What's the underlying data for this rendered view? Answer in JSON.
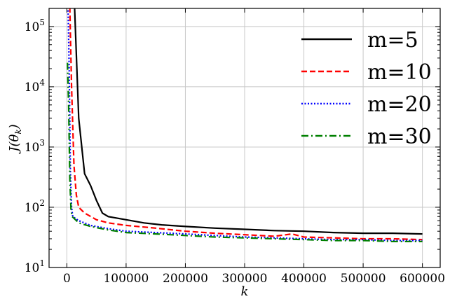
{
  "chart_data": {
    "type": "line",
    "xlabel": "k",
    "ylabel": "J(θ_k)",
    "yscale": "log",
    "xlim": [
      -30000,
      630000
    ],
    "ylim": [
      10,
      200000
    ],
    "xticks": [
      0,
      100000,
      200000,
      300000,
      400000,
      500000,
      600000
    ],
    "xtick_labels": [
      "0",
      "100000",
      "200000",
      "300000",
      "400000",
      "500000",
      "600000"
    ],
    "yticks": [
      10,
      100,
      1000,
      10000,
      100000
    ],
    "ytick_labels": [
      {
        "base": "10",
        "exp": "1"
      },
      {
        "base": "10",
        "exp": "2"
      },
      {
        "base": "10",
        "exp": "3"
      },
      {
        "base": "10",
        "exp": "4"
      },
      {
        "base": "10",
        "exp": "5"
      }
    ],
    "grid": true,
    "legend_position": "top-right",
    "series": [
      {
        "name": "m=5",
        "color": "#000000",
        "style": "solid",
        "x": [
          13000,
          20000,
          30000,
          40000,
          50000,
          60000,
          70000,
          100000,
          130000,
          160000,
          200000,
          250000,
          300000,
          350000,
          400000,
          450000,
          500000,
          550000,
          600000
        ],
        "y": [
          300000,
          3000,
          360,
          230,
          130,
          80,
          70,
          62,
          55,
          51,
          48,
          45,
          43,
          41,
          40,
          38,
          37,
          37,
          36
        ]
      },
      {
        "name": "m=10",
        "color": "#ff0000",
        "style": "dashed",
        "x": [
          5000,
          8000,
          12000,
          16000,
          20000,
          30000,
          50000,
          70000,
          100000,
          150000,
          200000,
          250000,
          300000,
          350000,
          380000,
          400000,
          450000,
          500000,
          550000,
          600000
        ],
        "y": [
          300000,
          10000,
          500,
          160,
          100,
          80,
          62,
          55,
          50,
          45,
          40,
          37,
          35,
          33,
          36,
          32,
          31,
          30,
          30,
          29
        ]
      },
      {
        "name": "m=20",
        "color": "#0000ff",
        "style": "dotted",
        "x": [
          2000,
          4000,
          6000,
          8000,
          10000,
          20000,
          40000,
          70000,
          100000,
          150000,
          200000,
          250000,
          300000,
          350000,
          400000,
          450000,
          500000,
          550000,
          600000
        ],
        "y": [
          300000,
          20000,
          400,
          100,
          70,
          60,
          50,
          44,
          40,
          38,
          36,
          34,
          32,
          31,
          30,
          29,
          29,
          28,
          28
        ]
      },
      {
        "name": "m=30",
        "color": "#008000",
        "style": "dashdot",
        "x": [
          1000,
          3000,
          5000,
          7000,
          9000,
          20000,
          40000,
          70000,
          100000,
          150000,
          200000,
          250000,
          300000,
          350000,
          400000,
          450000,
          500000,
          550000,
          600000
        ],
        "y": [
          25000,
          5000,
          300,
          90,
          70,
          55,
          48,
          42,
          38,
          36,
          34,
          32,
          31,
          30,
          29,
          28,
          28,
          27,
          27
        ]
      }
    ]
  }
}
